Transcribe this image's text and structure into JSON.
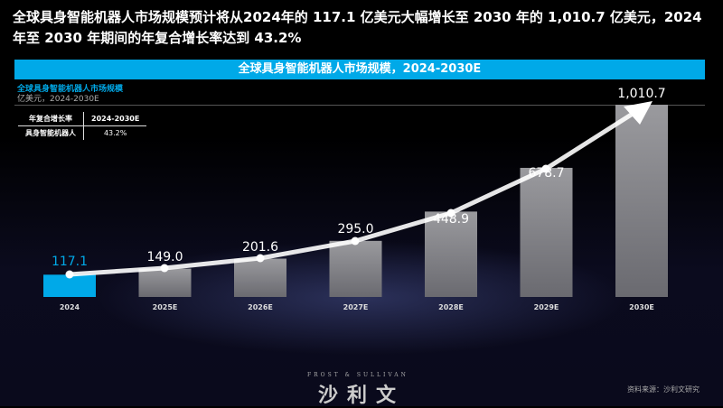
{
  "headline": "全球具身智能机器人市场规模预计将从2024年的 117.1 亿美元大幅增长至 2030 年的 1,010.7 亿美元，2024 年至 2030 年期间的年复合增长率达到 43.2%",
  "legend_table": {
    "headers": [
      "年复合增长率",
      "2024-2030E"
    ],
    "rows": [
      [
        "具身智能机器人",
        "43.2%"
      ]
    ]
  },
  "footer": {
    "logo_en": "FROST & SULLIVAN",
    "logo_cn": "沙利文",
    "source": "资料来源：沙利文研究"
  },
  "colors": {
    "accent": "#00a9e8",
    "bar": "#8a8a8e",
    "highlight": "#00a9e8"
  },
  "chart_data": {
    "type": "bar",
    "title": "全球具身智能机器人市场规模，2024-2030E",
    "subtitle": "全球具身智能机器人市场规模",
    "unit": "亿美元，2024-2030E",
    "categories": [
      "2024",
      "2025E",
      "2026E",
      "2027E",
      "2028E",
      "2029E",
      "2030E"
    ],
    "values": [
      117.1,
      149.0,
      201.6,
      295.0,
      448.9,
      678.7,
      1010.7
    ],
    "labels": [
      "117.1",
      "149.0",
      "201.6",
      "295.0",
      "448.9",
      "678.7",
      "1,010.7"
    ],
    "trend_arrow": true,
    "grid": false
  }
}
